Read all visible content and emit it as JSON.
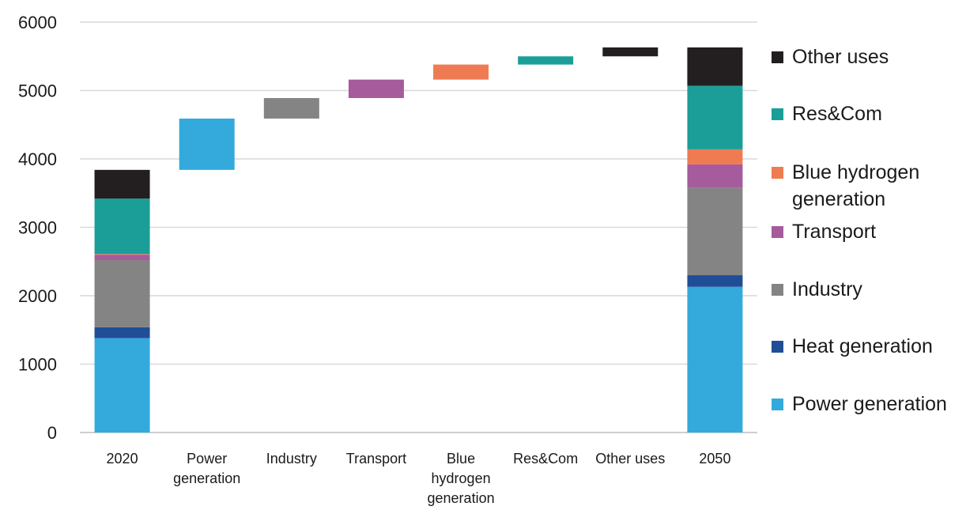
{
  "chart_data": {
    "type": "bar",
    "subtype": "stacked waterfall",
    "title": "",
    "xlabel": "",
    "ylabel": "",
    "ylim": [
      0,
      6000
    ],
    "yticks": [
      0,
      1000,
      2000,
      3000,
      4000,
      5000,
      6000
    ],
    "grid": true,
    "legend_position": "right",
    "colors": {
      "Power generation": "#34aadc",
      "Heat generation": "#1f4e96",
      "Industry": "#848484",
      "Transport": "#a65b9c",
      "Blue hydrogen generation": "#ef7b52",
      "Res&Com": "#1b9e98",
      "Other uses": "#231f20"
    },
    "legend": [
      "Other uses",
      "Res&Com",
      "Blue hydrogen generation",
      "Transport",
      "Industry",
      "Heat generation",
      "Power generation"
    ],
    "categories": [
      {
        "lines": [
          "2020"
        ]
      },
      {
        "lines": [
          "Power",
          "generation"
        ]
      },
      {
        "lines": [
          "Industry"
        ]
      },
      {
        "lines": [
          "Transport"
        ]
      },
      {
        "lines": [
          "Blue",
          "hydrogen",
          "generation"
        ]
      },
      {
        "lines": [
          "Res&Com"
        ]
      },
      {
        "lines": [
          "Other uses"
        ]
      },
      {
        "lines": [
          "2050"
        ]
      }
    ],
    "stacked_bars": [
      {
        "category_index": 0,
        "segments": [
          {
            "series": "Power generation",
            "value": 1380
          },
          {
            "series": "Heat generation",
            "value": 160
          },
          {
            "series": "Industry",
            "value": 980
          },
          {
            "series": "Transport",
            "value": 80
          },
          {
            "series": "Blue hydrogen generation",
            "value": 10
          },
          {
            "series": "Res&Com",
            "value": 810
          },
          {
            "series": "Other uses",
            "value": 420
          }
        ]
      },
      {
        "category_index": 7,
        "segments": [
          {
            "series": "Power generation",
            "value": 2130
          },
          {
            "series": "Heat generation",
            "value": 170
          },
          {
            "series": "Industry",
            "value": 1280
          },
          {
            "series": "Transport",
            "value": 340
          },
          {
            "series": "Blue hydrogen generation",
            "value": 220
          },
          {
            "series": "Res&Com",
            "value": 930
          },
          {
            "series": "Other uses",
            "value": 560
          }
        ]
      }
    ],
    "floating_bars": [
      {
        "category_index": 1,
        "series": "Power generation",
        "start": 3840,
        "end": 4590
      },
      {
        "category_index": 2,
        "series": "Industry",
        "start": 4590,
        "end": 4890
      },
      {
        "category_index": 3,
        "series": "Transport",
        "start": 4890,
        "end": 5160
      },
      {
        "category_index": 4,
        "series": "Blue hydrogen generation",
        "start": 5160,
        "end": 5380
      },
      {
        "category_index": 5,
        "series": "Res&Com",
        "start": 5380,
        "end": 5500
      },
      {
        "category_index": 6,
        "series": "Other uses",
        "start": 5500,
        "end": 5630
      }
    ]
  }
}
